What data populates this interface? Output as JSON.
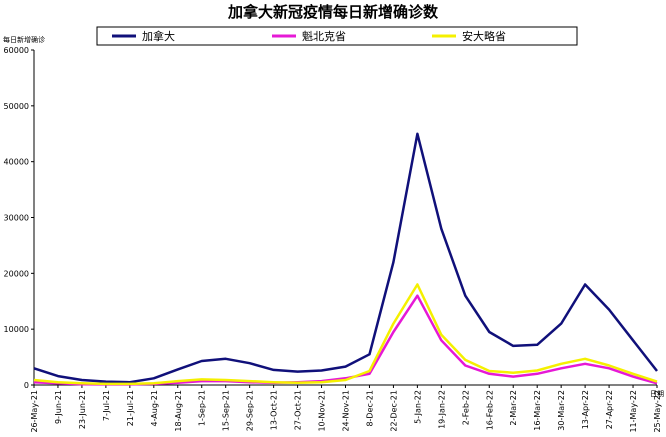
{
  "chart_data": {
    "type": "line",
    "title": "加拿大新冠疫情每日新增确诊数",
    "ylabel": "每日新增确诊",
    "xlabel": "日期",
    "ylim": [
      0,
      60000
    ],
    "yticks": [
      0,
      10000,
      20000,
      30000,
      40000,
      50000,
      60000
    ],
    "categories": [
      "26-May-21",
      "9-Jun-21",
      "23-Jun-21",
      "7-Jul-21",
      "21-Jul-21",
      "4-Aug-21",
      "18-Aug-21",
      "1-Sep-21",
      "15-Sep-21",
      "29-Sep-21",
      "13-Oct-21",
      "27-Oct-21",
      "10-Nov-21",
      "24-Nov-21",
      "8-Dec-21",
      "22-Dec-21",
      "5-Jan-22",
      "19-Jan-22",
      "2-Feb-22",
      "16-Feb-22",
      "2-Mar-22",
      "16-Mar-22",
      "30-Mar-22",
      "13-Apr-22",
      "27-Apr-22",
      "11-May-22",
      "25-May-22"
    ],
    "legend_position": "top",
    "grid": false,
    "series": [
      {
        "name": "加拿大",
        "color": "#10107a",
        "values": [
          3000,
          1600,
          900,
          600,
          500,
          1200,
          2800,
          4300,
          4700,
          3900,
          2700,
          2400,
          2600,
          3300,
          5500,
          22000,
          45000,
          28000,
          16000,
          9500,
          7000,
          7200,
          11000,
          18000,
          13500,
          8000,
          2500
        ]
      },
      {
        "name": "魁北克省",
        "color": "#e619d6",
        "values": [
          500,
          300,
          150,
          100,
          100,
          200,
          400,
          700,
          700,
          500,
          400,
          500,
          700,
          1200,
          2000,
          9500,
          16000,
          8000,
          3500,
          2000,
          1500,
          2000,
          3000,
          3800,
          3000,
          1500,
          300
        ]
      },
      {
        "name": "安大略省",
        "color": "#f5f000",
        "values": [
          900,
          500,
          300,
          200,
          200,
          300,
          700,
          1000,
          900,
          700,
          500,
          400,
          500,
          900,
          2500,
          11000,
          18000,
          9000,
          4500,
          2500,
          2200,
          2600,
          3800,
          4700,
          3500,
          2000,
          600
        ]
      }
    ]
  }
}
